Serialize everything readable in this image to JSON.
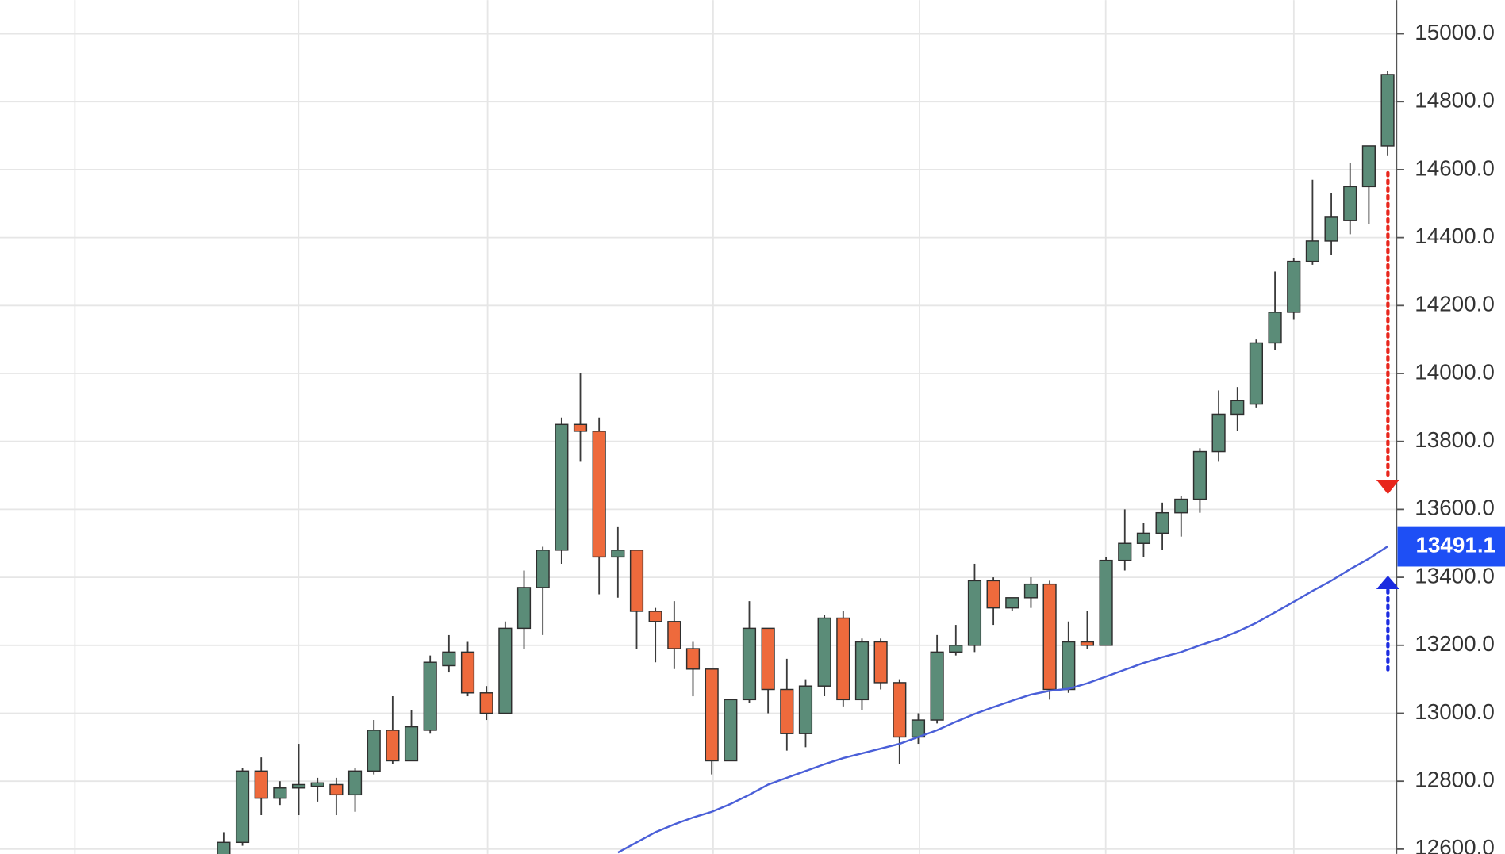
{
  "chart_data": {
    "type": "candlestick",
    "open": [
      12580,
      12620,
      12830,
      12750,
      12780,
      12785,
      12790,
      12760,
      12830,
      12950,
      12860,
      12950,
      13140,
      13180,
      13060,
      13000,
      13250,
      13370,
      13480,
      13850,
      13830,
      13460,
      13480,
      13300,
      13270,
      13190,
      13130,
      12860,
      13040,
      13250,
      13070,
      12940,
      13080,
      13280,
      13040,
      13210,
      13090,
      12930,
      12980,
      13180,
      13200,
      13390,
      13310,
      13340,
      13380,
      13070,
      13210,
      13200,
      13450,
      13500,
      13530,
      13590,
      13630,
      13770,
      13880,
      13910,
      14090,
      14180,
      14330,
      14390,
      14450,
      14550,
      14670
    ],
    "high": [
      12650,
      12840,
      12870,
      12800,
      12910,
      12810,
      12810,
      12840,
      12980,
      13050,
      13010,
      13170,
      13230,
      13210,
      13080,
      13270,
      13420,
      13490,
      13870,
      14000,
      13870,
      13550,
      13480,
      13310,
      13330,
      13210,
      13130,
      13040,
      13330,
      13250,
      13160,
      13100,
      13290,
      13300,
      13220,
      13220,
      13100,
      13000,
      13230,
      13260,
      13440,
      13400,
      13340,
      13400,
      13390,
      13270,
      13300,
      13460,
      13600,
      13560,
      13620,
      13640,
      13780,
      13950,
      13960,
      14100,
      14300,
      14340,
      14570,
      14530,
      14620,
      14670,
      14890
    ],
    "low": [
      12560,
      12610,
      12700,
      12730,
      12700,
      12740,
      12700,
      12710,
      12820,
      12850,
      12860,
      12940,
      13120,
      13050,
      12980,
      13000,
      13190,
      13230,
      13440,
      13740,
      13350,
      13340,
      13190,
      13150,
      13130,
      13050,
      12820,
      12860,
      13030,
      13000,
      12890,
      12900,
      13050,
      13020,
      13010,
      13070,
      12850,
      12910,
      12970,
      13170,
      13180,
      13260,
      13300,
      13310,
      13040,
      13060,
      13190,
      13200,
      13420,
      13460,
      13480,
      13520,
      13590,
      13740,
      13830,
      13900,
      14070,
      14160,
      14320,
      14350,
      14410,
      14440,
      14640
    ],
    "close": [
      12620,
      12830,
      12750,
      12780,
      12790,
      12795,
      12760,
      12830,
      12950,
      12860,
      12960,
      13150,
      13180,
      13060,
      13000,
      13250,
      13370,
      13480,
      13850,
      13830,
      13460,
      13480,
      13300,
      13270,
      13190,
      13130,
      12860,
      13040,
      13250,
      13070,
      12940,
      13080,
      13280,
      13040,
      13210,
      13090,
      12930,
      12980,
      13180,
      13200,
      13390,
      13310,
      13340,
      13380,
      13070,
      13210,
      13200,
      13450,
      13500,
      13530,
      13590,
      13630,
      13770,
      13880,
      13920,
      14090,
      14180,
      14330,
      14390,
      14460,
      14550,
      14670,
      14880
    ],
    "up_color": "#5b8c78",
    "down_color": "#ee6a3c",
    "ma": {
      "color": "#4a5fd8",
      "values": [
        null,
        null,
        null,
        null,
        null,
        null,
        null,
        null,
        null,
        null,
        null,
        null,
        null,
        null,
        null,
        null,
        null,
        null,
        null,
        null,
        null,
        12590,
        12620,
        12650,
        12673,
        12693,
        12710,
        12733,
        12760,
        12790,
        12810,
        12830,
        12850,
        12868,
        12882,
        12896,
        12910,
        12930,
        12950,
        12975,
        12998,
        13018,
        13037,
        13055,
        13066,
        13072,
        13088,
        13108,
        13128,
        13148,
        13165,
        13180,
        13200,
        13218,
        13240,
        13266,
        13297,
        13328,
        13360,
        13390,
        13424,
        13455,
        13491
      ]
    },
    "last_price": 13491.1,
    "last_price_color": "#1e4ff5",
    "ylim": [
      12586,
      15099
    ],
    "yticks": [
      {
        "value": 12600,
        "label": "12600.0"
      },
      {
        "value": 12800,
        "label": "12800.0"
      },
      {
        "value": 13000,
        "label": "13000.0"
      },
      {
        "value": 13200,
        "label": "13200.0"
      },
      {
        "value": 13400,
        "label": "13400.0"
      },
      {
        "value": 13600,
        "label": "13600.0"
      },
      {
        "value": 13800,
        "label": "13800.0"
      },
      {
        "value": 14000,
        "label": "14000.0"
      },
      {
        "value": 14200,
        "label": "14200.0"
      },
      {
        "value": 14400,
        "label": "14400.0"
      },
      {
        "value": 14600,
        "label": "14600.0"
      },
      {
        "value": 14800,
        "label": "14800.0"
      },
      {
        "value": 15000,
        "label": "15000.0"
      }
    ],
    "grid": true
  }
}
